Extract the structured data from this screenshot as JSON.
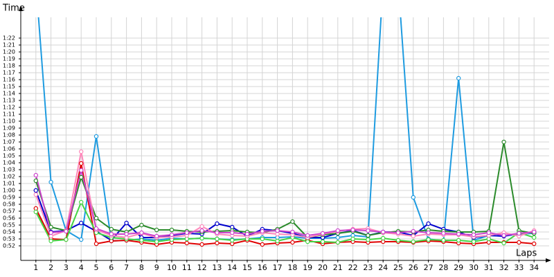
{
  "chart_data": {
    "type": "line",
    "y_label": "Time",
    "x_label": "Laps",
    "x": [
      1,
      2,
      3,
      4,
      5,
      6,
      7,
      8,
      9,
      10,
      11,
      12,
      13,
      14,
      15,
      16,
      17,
      18,
      19,
      20,
      21,
      22,
      23,
      24,
      25,
      26,
      27,
      28,
      29,
      30,
      31,
      32,
      33,
      34
    ],
    "xlim": [
      0,
      35
    ],
    "xticks": [
      1,
      2,
      3,
      4,
      5,
      6,
      7,
      8,
      9,
      10,
      11,
      12,
      13,
      14,
      15,
      16,
      17,
      18,
      19,
      20,
      21,
      22,
      23,
      24,
      25,
      26,
      27,
      28,
      29,
      30,
      31,
      32,
      33,
      34
    ],
    "ylim": [
      50,
      85
    ],
    "yticks": [
      {
        "value": 52,
        "label": "0:52"
      },
      {
        "value": 53,
        "label": "0:53"
      },
      {
        "value": 54,
        "label": "0:54"
      },
      {
        "value": 55,
        "label": "0:55"
      },
      {
        "value": 56,
        "label": "0:56"
      },
      {
        "value": 57,
        "label": "0:57"
      },
      {
        "value": 58,
        "label": "0:58"
      },
      {
        "value": 59,
        "label": "0:59"
      },
      {
        "value": 60,
        "label": "1:00"
      },
      {
        "value": 61,
        "label": "1:01"
      },
      {
        "value": 62,
        "label": "1:02"
      },
      {
        "value": 63,
        "label": "1:03"
      },
      {
        "value": 64,
        "label": "1:04"
      },
      {
        "value": 65,
        "label": "1:05"
      },
      {
        "value": 66,
        "label": "1:06"
      },
      {
        "value": 67,
        "label": "1:07"
      },
      {
        "value": 68,
        "label": "1:08"
      },
      {
        "value": 69,
        "label": "1:09"
      },
      {
        "value": 70,
        "label": "1:10"
      },
      {
        "value": 71,
        "label": "1:11"
      },
      {
        "value": 72,
        "label": "1:12"
      },
      {
        "value": 73,
        "label": "1:13"
      },
      {
        "value": 74,
        "label": "1:14"
      },
      {
        "value": 75,
        "label": "1:15"
      },
      {
        "value": 76,
        "label": "1:16"
      },
      {
        "value": 77,
        "label": "1:17"
      },
      {
        "value": 78,
        "label": "1:18"
      },
      {
        "value": 79,
        "label": "1:19"
      },
      {
        "value": 80,
        "label": "1:20"
      },
      {
        "value": 81,
        "label": "1:21"
      },
      {
        "value": 82,
        "label": "1:22"
      }
    ],
    "grid": true,
    "series": [
      {
        "color": "#1e9be0",
        "values": [
          90,
          61.2,
          54.2,
          52.9,
          67.8,
          52.7,
          52.8,
          53,
          52.8,
          53.1,
          53,
          53.1,
          53,
          52.9,
          53,
          53.2,
          53.2,
          53.3,
          53.1,
          53.1,
          53.2,
          53.5,
          53.3,
          90,
          90,
          59,
          53,
          52.7,
          76.2,
          52.8,
          53.5,
          53.4,
          53.7,
          53.8
        ]
      },
      {
        "color": "#0000cc",
        "values": [
          60,
          54,
          54.2,
          55.3,
          54.1,
          52.8,
          55.3,
          53.2,
          53.2,
          53.5,
          53.8,
          53.7,
          55.2,
          54.7,
          53.4,
          54.4,
          54.2,
          53.8,
          53.2,
          53.2,
          53.8,
          54.2,
          53.5,
          54,
          54,
          53.5,
          55.2,
          54.4,
          54,
          53.2,
          53.5,
          53.4,
          53.8,
          54
        ]
      },
      {
        "color": "#e00000",
        "values": [
          57.4,
          53,
          52.9,
          63.9,
          52.3,
          52.7,
          52.8,
          52.5,
          52.2,
          52.5,
          52.4,
          52.2,
          52.4,
          52.3,
          52.8,
          52.2,
          52.4,
          52.5,
          52.8,
          52.3,
          52.5,
          52.6,
          52.5,
          52.6,
          52.6,
          52.5,
          52.7,
          52.6,
          52.4,
          52.3,
          52.5,
          52.5,
          52.5,
          52.3
        ]
      },
      {
        "color": "#2a8a2a",
        "values": [
          61.4,
          54.7,
          54.2,
          61.9,
          56,
          54.4,
          54,
          55,
          54.3,
          54.3,
          54.1,
          54,
          54.1,
          54.2,
          54,
          53.9,
          54.4,
          55.5,
          53.2,
          53.6,
          53.8,
          54.1,
          53.5,
          53.9,
          54.1,
          54,
          54.3,
          54.1,
          54,
          54,
          54.1,
          67,
          54.2,
          53.8
        ]
      },
      {
        "color": "#44d444",
        "values": [
          56.9,
          52.7,
          52.9,
          58.3,
          53.9,
          53.2,
          53,
          52.8,
          52.6,
          52.9,
          53,
          53.1,
          53,
          52.8,
          53,
          53,
          52.7,
          53.2,
          52.6,
          52.6,
          52.5,
          53,
          52.9,
          53.1,
          52.8,
          52.6,
          52.9,
          52.8,
          52.8,
          52.6,
          53,
          52.4,
          53.9,
          53.2
        ]
      },
      {
        "color": "#ff88bb",
        "values": [
          59.4,
          53.4,
          54.2,
          65.6,
          54.3,
          53.5,
          53.2,
          53.8,
          53.2,
          53.3,
          53.5,
          54.8,
          53.7,
          53.5,
          53.4,
          53.9,
          53.7,
          53.6,
          53.2,
          53.7,
          54.1,
          54.4,
          54.5,
          53.9,
          53.7,
          53.4,
          53.7,
          53.6,
          53.6,
          53.3,
          53.5,
          53.9,
          53.4,
          54.2
        ]
      },
      {
        "color": "#cc44cc",
        "values": [
          62.2,
          53.9,
          54.1,
          62.9,
          54.5,
          53.7,
          53.7,
          53.9,
          53.4,
          53.6,
          53.9,
          54.2,
          53.9,
          53.9,
          53.7,
          54.1,
          54.2,
          54,
          53.5,
          53.8,
          54.2,
          54.3,
          54.2,
          54,
          53.9,
          54.1,
          53.9,
          53.8,
          53.7,
          53.6,
          53.9,
          53.5,
          53.8,
          54
        ]
      }
    ]
  }
}
